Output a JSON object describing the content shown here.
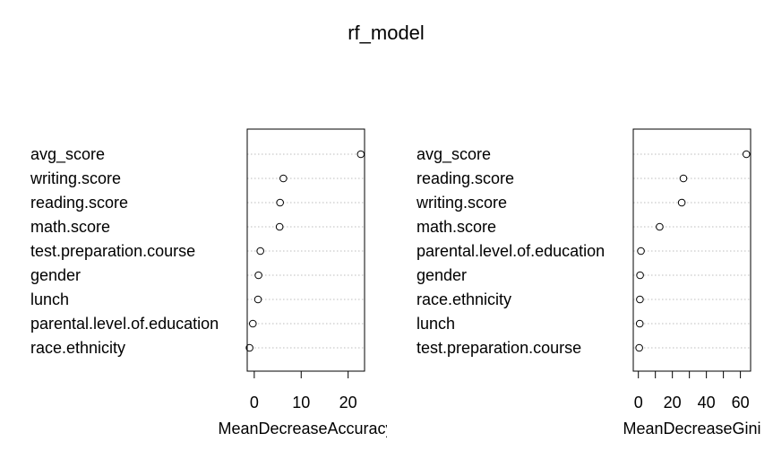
{
  "title": "rf_model",
  "chart_data": [
    {
      "type": "dotchart",
      "xlabel": "MeanDecreaseAccuracy",
      "xlim": [
        -1.5,
        23.5
      ],
      "ticks": [
        0,
        10,
        20
      ],
      "categories": [
        "avg_score",
        "writing.score",
        "reading.score",
        "math.score",
        "test.preparation.course",
        "gender",
        "lunch",
        "parental.level.of.education",
        "race.ethnicity"
      ],
      "values": [
        22.7,
        6.2,
        5.5,
        5.4,
        1.3,
        0.9,
        0.8,
        -0.3,
        -1.0
      ]
    },
    {
      "type": "dotchart",
      "xlabel": "MeanDecreaseGini",
      "xlim": [
        -3,
        66
      ],
      "ticks": [
        0,
        20,
        40,
        60
      ],
      "minor_ticks": [
        10,
        30,
        50
      ],
      "categories": [
        "avg_score",
        "reading.score",
        "writing.score",
        "math.score",
        "parental.level.of.education",
        "gender",
        "race.ethnicity",
        "lunch",
        "test.preparation.course"
      ],
      "values": [
        63.5,
        26.5,
        25.5,
        12.5,
        1.5,
        1.0,
        0.9,
        0.8,
        0.5
      ]
    }
  ]
}
